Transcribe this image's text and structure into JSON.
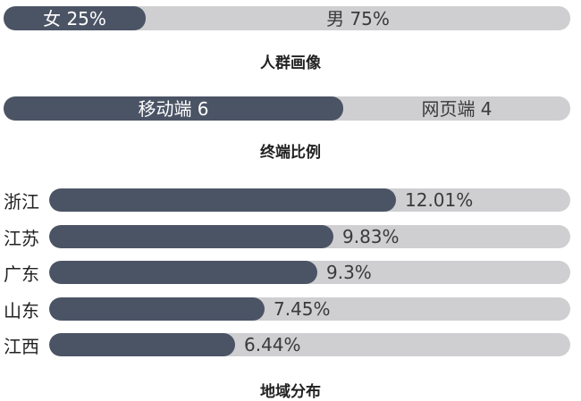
{
  "chart_data": [
    {
      "type": "bar",
      "title": "人群画像",
      "segments": [
        {
          "label": "女",
          "value": 25,
          "display": "女 25%",
          "color": "#4b5465"
        },
        {
          "label": "男",
          "value": 75,
          "display": "男 75%",
          "color": "#cfcfd1"
        }
      ]
    },
    {
      "type": "bar",
      "title": "终端比例",
      "segments": [
        {
          "label": "移动端",
          "value": 6,
          "display": "移动端 6",
          "color": "#4b5465"
        },
        {
          "label": "网页端",
          "value": 4,
          "display": "网页端 4",
          "color": "#cfcfd1"
        }
      ]
    },
    {
      "type": "bar",
      "title": "地域分布",
      "categories": [
        "浙江",
        "江苏",
        "广东",
        "山东",
        "江西"
      ],
      "values": [
        12.01,
        9.83,
        9.3,
        7.45,
        6.44
      ],
      "value_labels": [
        "12.01%",
        "9.83%",
        "9.3%",
        "7.45%",
        "6.44%"
      ],
      "color": "#4b5465",
      "track_color": "#cfcfd1"
    }
  ]
}
